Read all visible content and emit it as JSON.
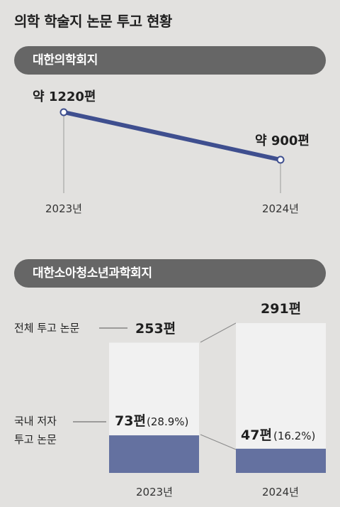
{
  "title": "의학 학술지 논문 투고 현황",
  "colors": {
    "background": "#e2e1df",
    "pill": "#666666",
    "line": "#3f4f8f",
    "bar_domestic": "#6471a0",
    "bar_total": "#f1f1f1"
  },
  "chart_data": [
    {
      "type": "line",
      "title": "대한의학회지",
      "categories": [
        "2023년",
        "2024년"
      ],
      "values": [
        1220,
        900
      ],
      "unit": "편",
      "data_labels": [
        "약 1220편",
        "약 900편"
      ]
    },
    {
      "type": "bar",
      "title": "대한소아청소년과학회지",
      "categories": [
        "2023년",
        "2024년"
      ],
      "series": [
        {
          "name": "전체 투고 논문",
          "values": [
            253,
            291
          ]
        },
        {
          "name": "국내 저자 투고 논문",
          "values": [
            73,
            47
          ],
          "percent": [
            "28.9%",
            "16.2%"
          ]
        }
      ],
      "labels": {
        "total_name": "전체 투고 논문",
        "total_2023": "253편",
        "total_2024": "291편",
        "domestic_name_1": "국내 저자",
        "domestic_name_2": "투고 논문",
        "domestic_2023": "73편",
        "domestic_2023_pct": "(28.9%)",
        "domestic_2024": "47편",
        "domestic_2024_pct": "(16.2%)"
      }
    }
  ]
}
